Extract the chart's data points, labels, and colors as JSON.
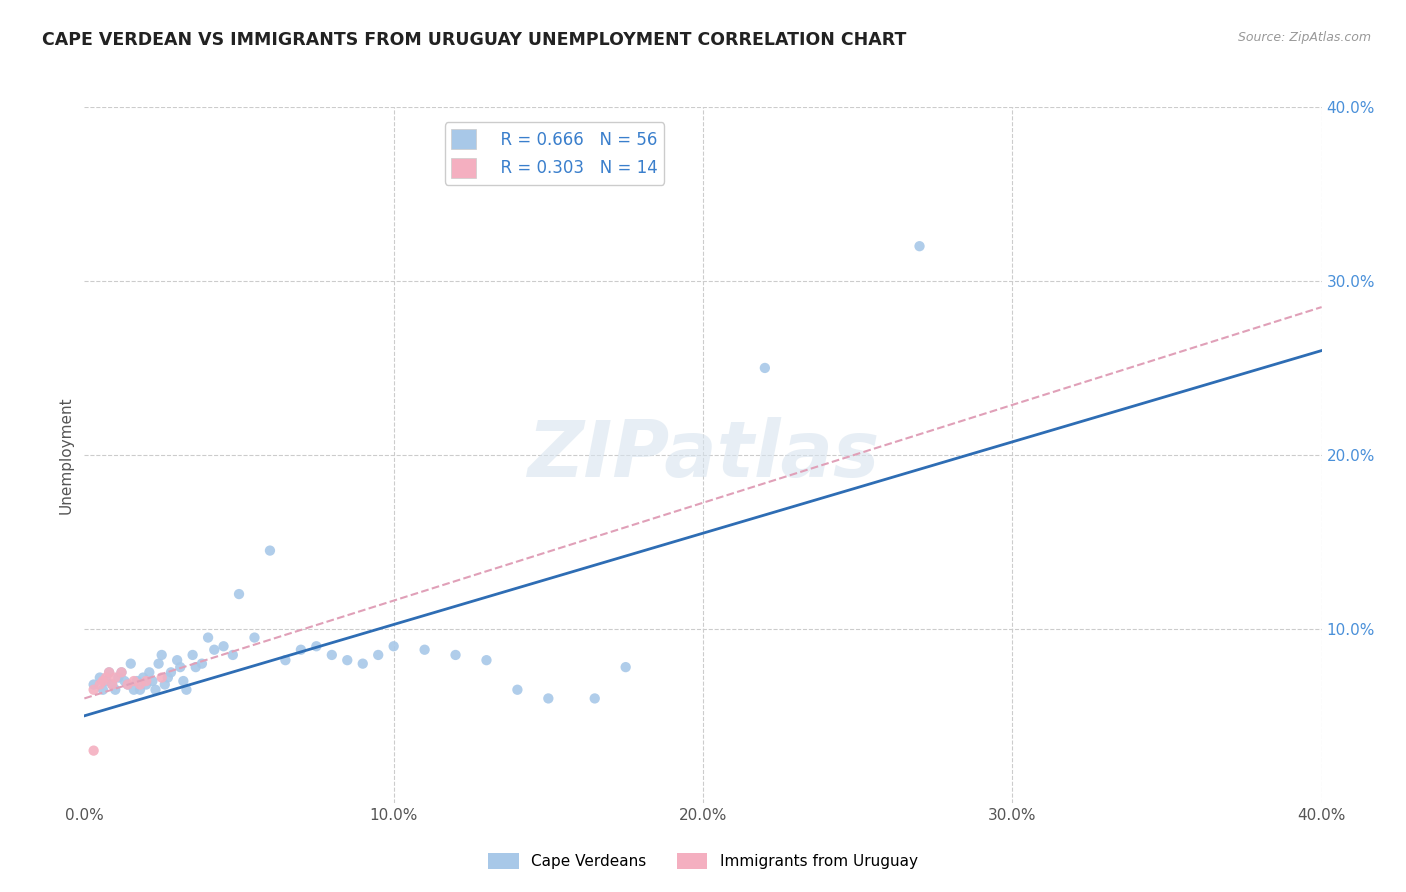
{
  "title": "CAPE VERDEAN VS IMMIGRANTS FROM URUGUAY UNEMPLOYMENT CORRELATION CHART",
  "source": "Source: ZipAtlas.com",
  "ylabel": "Unemployment",
  "xlim": [
    0.0,
    0.4
  ],
  "ylim": [
    0.0,
    0.4
  ],
  "xtick_vals": [
    0.0,
    0.1,
    0.2,
    0.3,
    0.4
  ],
  "ytick_vals": [
    0.0,
    0.1,
    0.2,
    0.3,
    0.4
  ],
  "cape_verdean_color": "#a8c8e8",
  "uruguay_color": "#f4afc0",
  "trendline_blue_color": "#2e6db4",
  "trendline_pink_color": "#e0a0b8",
  "legend_r1": "R = 0.666",
  "legend_n1": "N = 56",
  "legend_r2": "R = 0.303",
  "legend_n2": "N = 14",
  "watermark": "ZIPatlas",
  "cape_verdeans_x": [
    0.003,
    0.005,
    0.006,
    0.007,
    0.008,
    0.009,
    0.01,
    0.011,
    0.012,
    0.013,
    0.014,
    0.015,
    0.016,
    0.017,
    0.018,
    0.019,
    0.02,
    0.021,
    0.022,
    0.023,
    0.024,
    0.025,
    0.026,
    0.027,
    0.028,
    0.03,
    0.031,
    0.032,
    0.033,
    0.035,
    0.036,
    0.038,
    0.04,
    0.042,
    0.045,
    0.048,
    0.05,
    0.055,
    0.06,
    0.065,
    0.07,
    0.075,
    0.08,
    0.085,
    0.09,
    0.095,
    0.1,
    0.11,
    0.12,
    0.13,
    0.14,
    0.15,
    0.165,
    0.175,
    0.22,
    0.27
  ],
  "cape_verdeans_y": [
    0.068,
    0.072,
    0.065,
    0.07,
    0.075,
    0.068,
    0.065,
    0.072,
    0.075,
    0.07,
    0.068,
    0.08,
    0.065,
    0.07,
    0.065,
    0.072,
    0.068,
    0.075,
    0.07,
    0.065,
    0.08,
    0.085,
    0.068,
    0.072,
    0.075,
    0.082,
    0.078,
    0.07,
    0.065,
    0.085,
    0.078,
    0.08,
    0.095,
    0.088,
    0.09,
    0.085,
    0.12,
    0.095,
    0.145,
    0.082,
    0.088,
    0.09,
    0.085,
    0.082,
    0.08,
    0.085,
    0.09,
    0.088,
    0.085,
    0.082,
    0.065,
    0.06,
    0.06,
    0.078,
    0.25,
    0.32
  ],
  "uruguay_x": [
    0.003,
    0.005,
    0.006,
    0.007,
    0.008,
    0.009,
    0.01,
    0.012,
    0.014,
    0.016,
    0.018,
    0.02,
    0.025,
    0.003
  ],
  "uruguay_y": [
    0.065,
    0.068,
    0.07,
    0.072,
    0.075,
    0.068,
    0.072,
    0.075,
    0.068,
    0.07,
    0.068,
    0.07,
    0.072,
    0.03
  ],
  "blue_trend_x": [
    0.0,
    0.4
  ],
  "blue_trend_y": [
    0.05,
    0.26
  ],
  "pink_trend_x": [
    0.0,
    0.4
  ],
  "pink_trend_y": [
    0.06,
    0.285
  ]
}
